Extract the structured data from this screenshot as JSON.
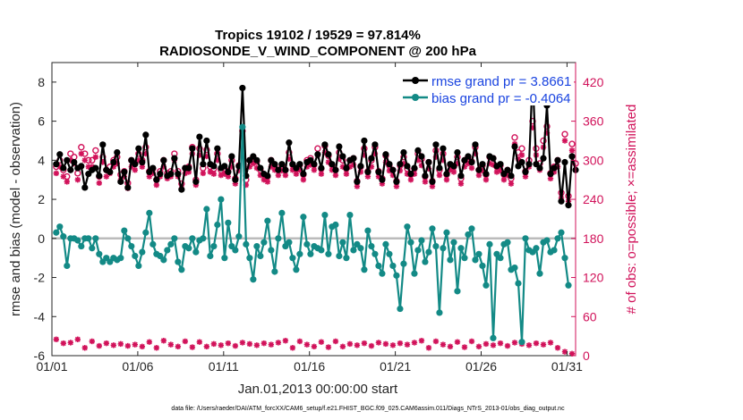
{
  "chart_data": {
    "type": "line",
    "title": [
      "Tropics 19102 / 19529 = 97.814%",
      "RADIOSONDE_V_WIND_COMPONENT @ 200 hPa"
    ],
    "xlabel": "Jan.01,2013 00:00:00 start",
    "ylabel": "rmse and bias (model - observation)",
    "y2label": "# of obs: o=possible; ×=assimilated",
    "x_ticks": [
      "01/01",
      "01/06",
      "01/11",
      "01/16",
      "01/21",
      "01/26",
      "01/31"
    ],
    "y_ticks": [
      "8",
      "6",
      "4",
      "2",
      "0",
      "-2",
      "-4",
      "-6"
    ],
    "y2_ticks": [
      "420",
      "360",
      "300",
      "240",
      "180",
      "120",
      "60",
      "0"
    ],
    "xlim": [
      1,
      31.5
    ],
    "ylim": [
      -6,
      9
    ],
    "y2lim": [
      0,
      450
    ],
    "zero_line": 0,
    "footer": "data file: /Users/raeder/DAI/ATM_forcXX/CAM6_setup/f.e21.FHIST_BGC.f09_025.CAM6assim.011/Diags_NTrS_2013-01/obs_diag_output.nc",
    "legend": [
      {
        "label": "rmse grand pr = 3.8661",
        "color": "#000000"
      },
      {
        "label": "bias grand pr = -0.4064",
        "color": "#138a86"
      }
    ],
    "series": [
      {
        "name": "rmse",
        "color": "#000000",
        "values": [
          3.8,
          4.3,
          3.6,
          4.0,
          3.5,
          3.9,
          3.6,
          3.7,
          2.6,
          3.3,
          3.5,
          3.6,
          3.2,
          4.8,
          3.5,
          3.4,
          3.9,
          4.4,
          2.9,
          3.4,
          2.6,
          4.0,
          3.8,
          4.6,
          3.9,
          5.3,
          3.4,
          3.6,
          3.0,
          3.3,
          4.0,
          3.2,
          3.3,
          4.1,
          3.3,
          2.5,
          3.6,
          3.6,
          4.6,
          2.9,
          5.2,
          3.8,
          5.0,
          3.8,
          3.7,
          4.6,
          3.6,
          3.7,
          3.4,
          4.2,
          3.0,
          3.7,
          7.7,
          3.2,
          4.0,
          4.2,
          4.0,
          3.6,
          3.3,
          3.2,
          4.0,
          3.8,
          3.5,
          3.8,
          3.5,
          4.9,
          3.8,
          3.6,
          3.8,
          3.3,
          3.9,
          4.0,
          3.8,
          4.3,
          3.6,
          4.8,
          4.3,
          3.8,
          3.5,
          4.7,
          4.2,
          3.6,
          4.0,
          4.1,
          2.9,
          3.7,
          5.0,
          3.4,
          4.1,
          4.8,
          3.4,
          3.0,
          4.3,
          3.8,
          3.5,
          2.9,
          3.8,
          4.4,
          3.7,
          3.3,
          3.6,
          4.5,
          4.2,
          3.2,
          3.9,
          2.9,
          4.8,
          3.6,
          4.6,
          3.3,
          3.8,
          3.7,
          4.4,
          3.2,
          4.0,
          4.2,
          3.9,
          4.8,
          3.5,
          3.8,
          3.3,
          4.2,
          4.1,
          3.7,
          3.8,
          3.3,
          3.5,
          3.2,
          4.7,
          3.7,
          3.9,
          3.4,
          3.8,
          8.3,
          3.8,
          3.6,
          4.1,
          6.8,
          3.3,
          3.6,
          4.0,
          1.9,
          3.9,
          1.7,
          4.2,
          3.5
        ]
      },
      {
        "name": "bias",
        "color": "#138a86",
        "values": [
          0.3,
          0.6,
          0.1,
          -1.4,
          0.0,
          0.0,
          -0.1,
          -0.4,
          0.0,
          0.0,
          -0.5,
          0.0,
          -0.8,
          -1.2,
          -1.0,
          -1.2,
          -1.0,
          -1.1,
          -1.0,
          0.4,
          0.0,
          -0.4,
          -0.9,
          -1.4,
          -0.7,
          0.3,
          1.3,
          -0.3,
          -0.8,
          -0.9,
          -1.1,
          -0.6,
          -0.3,
          0.0,
          -1.2,
          -1.6,
          -0.4,
          -0.5,
          0.0,
          -0.7,
          -0.1,
          0.0,
          1.5,
          -0.9,
          -0.4,
          0.7,
          2.0,
          -1.0,
          0.8,
          -0.4,
          -0.6,
          0.1,
          5.7,
          -0.3,
          -1.0,
          -2.1,
          -0.4,
          -0.9,
          -0.2,
          0.9,
          -0.6,
          -1.7,
          0.0,
          1.3,
          -0.4,
          -0.2,
          -1.0,
          -1.6,
          -0.8,
          1.1,
          -0.3,
          -0.8,
          -0.4,
          -0.5,
          -0.6,
          1.2,
          -0.8,
          0.6,
          0.7,
          -0.9,
          -0.2,
          -1.0,
          1.2,
          -0.6,
          -0.3,
          -0.5,
          -1.6,
          0.4,
          -0.4,
          -0.8,
          -1.4,
          -1.8,
          -0.3,
          -0.8,
          -1.4,
          -1.9,
          -3.6,
          -1.3,
          0.6,
          -0.2,
          -1.8,
          -0.6,
          -0.1,
          -1.2,
          -0.7,
          0.5,
          -0.4,
          -3.8,
          -0.5,
          0.3,
          -1.1,
          -0.2,
          -2.7,
          -0.5,
          -1.0,
          0.2,
          0.5,
          -1.1,
          -0.8,
          -1.4,
          -2.4,
          -0.3,
          -5.1,
          -0.8,
          -1.0,
          -0.3,
          -0.2,
          -1.6,
          -1.5,
          -2.3,
          -5.3,
          0.0,
          -0.6,
          -0.7,
          -0.5,
          -1.8,
          -0.2,
          -0.1,
          -0.7,
          -0.6,
          0.0,
          0.3,
          -1.0,
          -2.4
        ]
      }
    ],
    "obs": {
      "color": "#d1125a",
      "possible": [
        290,
        300,
        285,
        275,
        310,
        305,
        280,
        320,
        310,
        300,
        300,
        315,
        275,
        305,
        285,
        290,
        300,
        305,
        278,
        283,
        265,
        300,
        295,
        310,
        300,
        320,
        283,
        287,
        270,
        283,
        300,
        280,
        283,
        310,
        283,
        264,
        288,
        290,
        320,
        270,
        318,
        288,
        316,
        290,
        287,
        310,
        285,
        287,
        283,
        300,
        272,
        292,
        345,
        270,
        300,
        305,
        298,
        285,
        278,
        275,
        300,
        293,
        285,
        292,
        285,
        312,
        293,
        287,
        293,
        278,
        300,
        303,
        293,
        318,
        287,
        322,
        307,
        293,
        285,
        312,
        300,
        287,
        300,
        303,
        268,
        290,
        318,
        283,
        300,
        320,
        283,
        272,
        307,
        292,
        285,
        268,
        292,
        305,
        287,
        278,
        287,
        310,
        302,
        275,
        297,
        268,
        315,
        285,
        310,
        278,
        293,
        290,
        305,
        272,
        300,
        305,
        298,
        320,
        285,
        292,
        278,
        305,
        303,
        290,
        292,
        278,
        285,
        272,
        335,
        312,
        318,
        283,
        300,
        360,
        318,
        295,
        330,
        352,
        280,
        290,
        300,
        250,
        340,
        245,
        325,
        295
      ],
      "assimilated": [
        280,
        290,
        275,
        267,
        300,
        295,
        270,
        310,
        300,
        290,
        290,
        305,
        265,
        297,
        275,
        280,
        290,
        295,
        270,
        275,
        257,
        290,
        285,
        300,
        290,
        310,
        275,
        280,
        262,
        275,
        290,
        272,
        275,
        300,
        275,
        257,
        280,
        282,
        310,
        262,
        308,
        280,
        306,
        282,
        279,
        300,
        277,
        279,
        275,
        290,
        264,
        284,
        335,
        262,
        290,
        295,
        288,
        277,
        270,
        267,
        290,
        285,
        277,
        284,
        277,
        302,
        285,
        279,
        285,
        270,
        290,
        293,
        285,
        308,
        279,
        312,
        297,
        285,
        277,
        302,
        290,
        279,
        290,
        293,
        260,
        282,
        308,
        275,
        290,
        310,
        275,
        264,
        297,
        284,
        277,
        260,
        284,
        295,
        279,
        270,
        279,
        300,
        292,
        267,
        287,
        260,
        305,
        277,
        300,
        270,
        285,
        282,
        295,
        264,
        290,
        295,
        288,
        310,
        277,
        284,
        270,
        295,
        293,
        282,
        284,
        270,
        277,
        264,
        325,
        302,
        308,
        275,
        290,
        350,
        308,
        285,
        320,
        342,
        272,
        282,
        290,
        242,
        330,
        237,
        315,
        285
      ],
      "bottom": [
        25,
        22,
        19,
        16,
        20,
        18,
        25,
        14,
        12,
        18,
        22,
        17,
        15,
        24,
        19,
        13,
        16,
        20,
        18,
        22,
        15,
        12,
        17,
        20,
        14,
        18,
        21,
        16,
        12,
        19,
        23,
        15,
        17,
        20,
        14,
        18,
        22,
        16,
        13,
        19,
        21,
        17,
        14,
        20,
        18,
        23,
        16,
        12,
        19,
        22,
        15,
        17,
        20,
        14,
        18,
        21,
        16,
        13,
        19,
        22,
        17,
        14,
        20,
        18,
        23,
        16,
        12,
        19,
        22,
        15,
        17,
        20,
        14,
        18,
        21,
        16,
        13,
        19,
        22,
        17,
        14,
        20,
        18,
        24,
        16,
        12,
        19,
        22,
        15,
        17,
        20,
        14,
        18,
        21,
        16,
        13,
        19,
        22,
        17,
        14,
        20,
        18,
        23,
        16,
        12,
        19,
        22,
        15,
        17,
        20,
        14,
        18,
        21,
        16,
        13,
        19,
        22,
        17,
        14,
        20,
        18,
        23,
        16,
        12,
        19,
        22,
        15,
        17,
        20,
        14,
        18,
        21,
        16,
        13,
        19,
        22,
        17,
        14,
        20,
        18,
        12,
        8,
        6,
        4,
        3,
        2
      ]
    }
  }
}
